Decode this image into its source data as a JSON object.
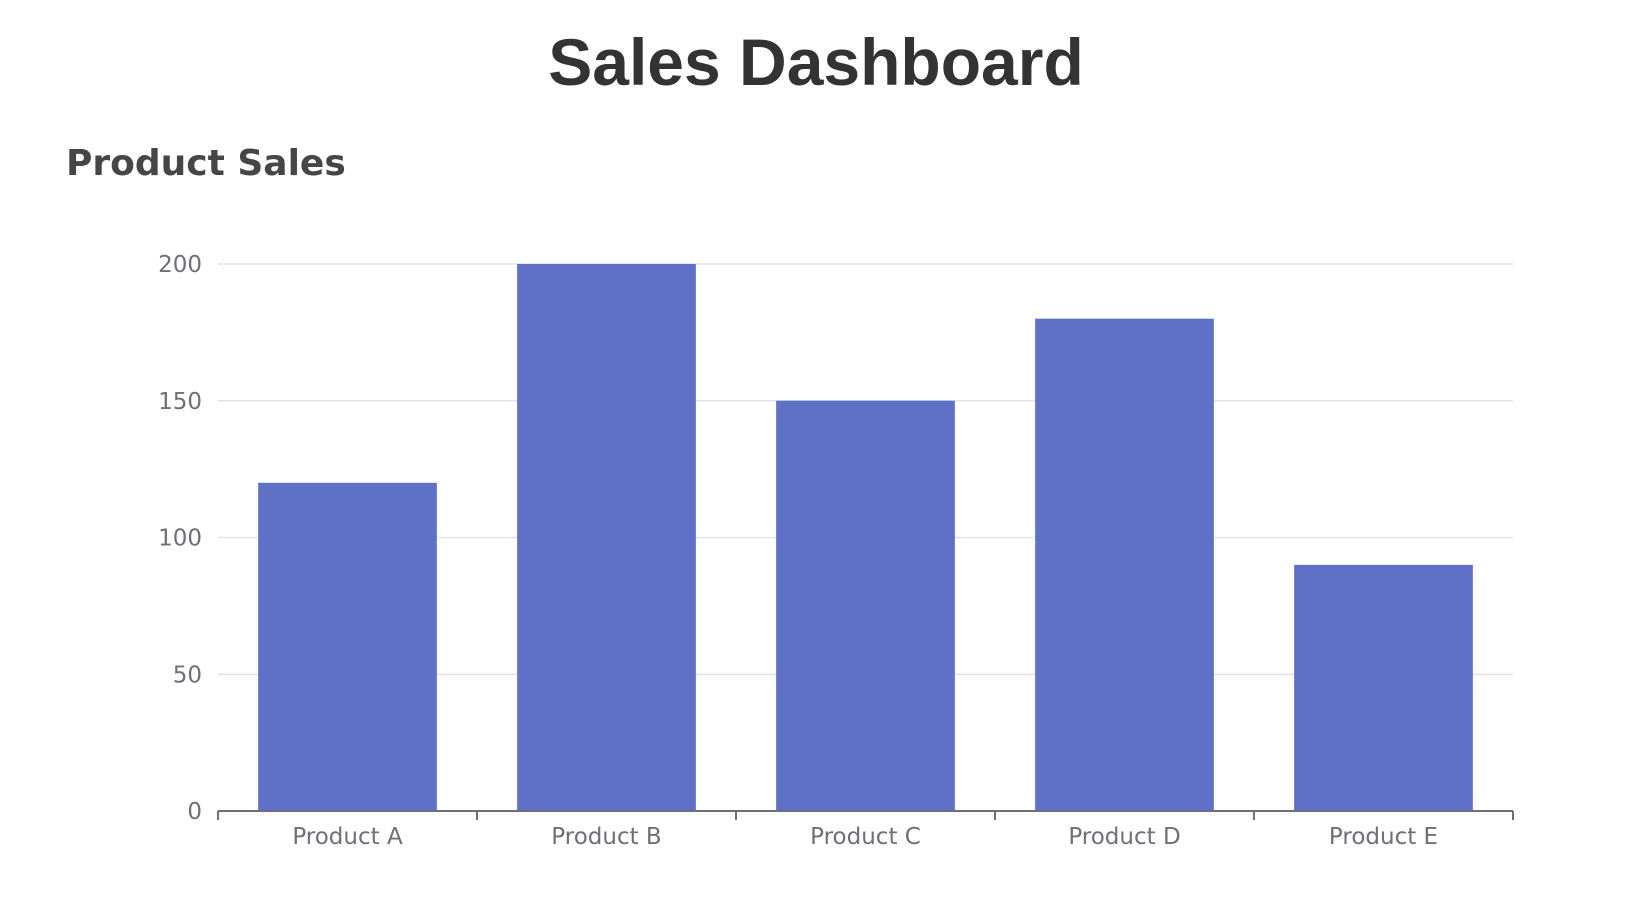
{
  "dashboard": {
    "title": "Sales Dashboard"
  },
  "colors": {
    "bar": "#5f70c7",
    "grid": "#e0e3ef",
    "axis": "#6e7079",
    "title": "#333333",
    "chart_title": "#464646"
  },
  "chart_data": {
    "type": "bar",
    "title": "Product Sales",
    "xlabel": "",
    "ylabel": "",
    "categories": [
      "Product A",
      "Product B",
      "Product C",
      "Product D",
      "Product E"
    ],
    "values": [
      120,
      200,
      150,
      180,
      90
    ],
    "ylim": [
      0,
      200
    ],
    "yticks": [
      0,
      50,
      100,
      150,
      200
    ],
    "grid": true,
    "legend": "none"
  }
}
